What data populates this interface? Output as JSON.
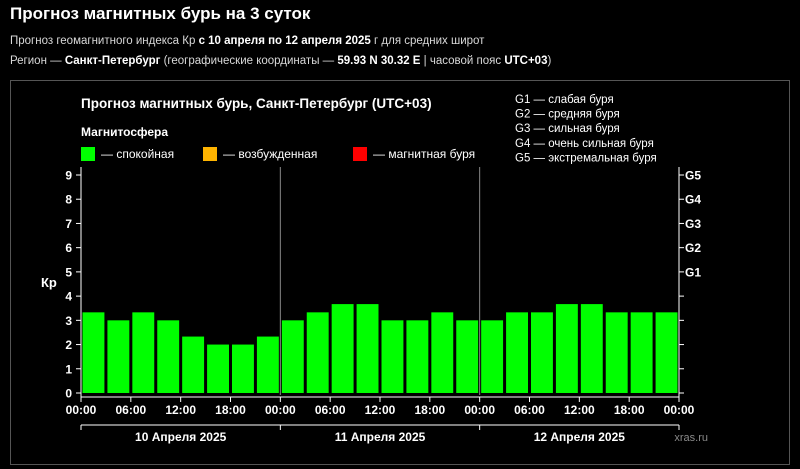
{
  "header": {
    "title": "Прогноз магнитных бурь на 3 суток",
    "sub1": {
      "prefix": "Прогноз геомагнитного индекса Кр ",
      "dates": "с 10 апреля по 12 апреля 2025",
      "suffix": " г для средних широт"
    },
    "sub2": {
      "prefix": "Регион — ",
      "city": "Санкт-Петербург",
      "mid": " (географические координаты — ",
      "coords": "59.93 N 30.32 E",
      "mid2": " | часовой пояс ",
      "tz": "UTC+03",
      "suffix": ")"
    }
  },
  "colors": {
    "calm": "#00ff00",
    "excited": "#ffb400",
    "storm": "#ff0000",
    "axis": "#ffffff",
    "divider": "#888888"
  },
  "chart_data": {
    "type": "bar",
    "title": "Прогноз магнитных бурь, Санкт-Петербург (UTC+03)",
    "legend_title": "Магнитосфера",
    "legend": [
      {
        "name": "— спокойная",
        "color": "#00ff00"
      },
      {
        "name": "— возбужденная",
        "color": "#ffb400"
      },
      {
        "name": "— магнитная буря",
        "color": "#ff0000"
      }
    ],
    "g_scale": [
      "G1 — слабая буря",
      "G2 — средняя буря",
      "G3 — сильная буря",
      "G4 — очень сильная буря",
      "G5 — экстремальная буря"
    ],
    "ylabel": "Кр",
    "ylim": [
      0,
      9
    ],
    "y_ticks": [
      "0",
      "1",
      "2",
      "3",
      "4",
      "5",
      "6",
      "7",
      "8",
      "9"
    ],
    "right_ticks": [
      {
        "label": "G1",
        "value": 5
      },
      {
        "label": "G2",
        "value": 6
      },
      {
        "label": "G3",
        "value": 7
      },
      {
        "label": "G4",
        "value": 8
      },
      {
        "label": "G5",
        "value": 9
      }
    ],
    "x_tick_labels": [
      "00:00",
      "06:00",
      "12:00",
      "18:00",
      "00:00",
      "06:00",
      "12:00",
      "18:00",
      "00:00",
      "06:00",
      "12:00",
      "18:00",
      "00:00"
    ],
    "days": [
      "10 Апреля 2025",
      "11 Апреля 2025",
      "12 Апреля 2025"
    ],
    "values": [
      3.33,
      3,
      3.33,
      3,
      2.33,
      2,
      2,
      2.33,
      3,
      3.33,
      3.67,
      3.67,
      3,
      3,
      3.33,
      3,
      3,
      3.33,
      3.33,
      3.67,
      3.67,
      3.33,
      3.33,
      3.33
    ],
    "watermark": "xras.ru",
    "grid": false
  }
}
